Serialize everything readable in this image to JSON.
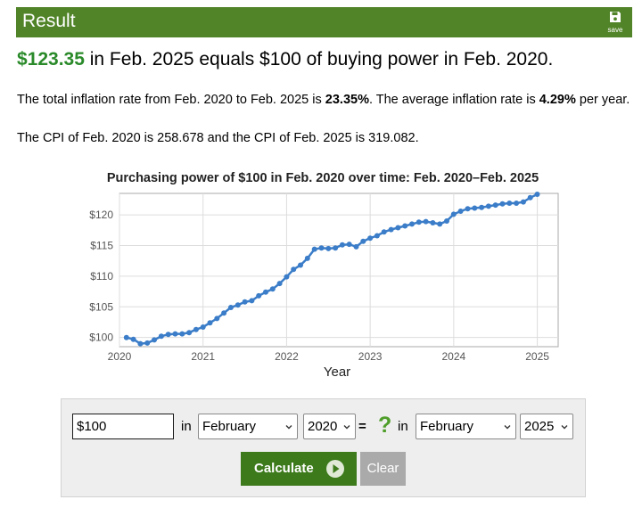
{
  "header": {
    "title": "Result",
    "save_label": "save",
    "bg_color": "#518428"
  },
  "headline": {
    "amount": "$123.35",
    "text": " in Feb. 2025 equals $100 of buying power in Feb. 2020."
  },
  "summary": {
    "p1_a": "The total inflation rate from Feb. 2020 to Feb. 2025 is ",
    "total_rate": "23.35%",
    "p1_b": ". The average inflation rate is ",
    "avg_rate": "4.29%",
    "p1_c": " per year.",
    "p2": "The CPI of Feb. 2020 is 258.678 and the CPI of Feb. 2025 is 319.082."
  },
  "chart_data": {
    "type": "line",
    "title": "Purchasing power of $100 in Feb. 2020 over time: Feb. 2020–Feb. 2025",
    "xlabel": "Year",
    "ylabel": "",
    "xlim": [
      2020,
      2025.25
    ],
    "ylim": [
      98.5,
      123.5
    ],
    "x_ticks": [
      "2020",
      "2021",
      "2022",
      "2023",
      "2024",
      "2025"
    ],
    "y_ticks": [
      "$100",
      "$105",
      "$110",
      "$115",
      "$120"
    ],
    "y_tick_values": [
      100,
      105,
      110,
      115,
      120
    ],
    "grid": true,
    "series_color": "#3b7dc8",
    "series": [
      {
        "x_start": 2020.0833,
        "x_step": 0.08333,
        "values": [
          100.0,
          99.7,
          99.0,
          99.1,
          99.6,
          100.2,
          100.5,
          100.6,
          100.6,
          100.8,
          101.3,
          101.7,
          102.4,
          103.1,
          104.0,
          104.9,
          105.3,
          105.8,
          106.0,
          106.8,
          107.4,
          107.9,
          108.8,
          109.9,
          111.1,
          111.8,
          112.9,
          114.4,
          114.6,
          114.5,
          114.6,
          115.1,
          115.2,
          114.8,
          115.7,
          116.2,
          116.6,
          117.2,
          117.6,
          117.9,
          118.2,
          118.5,
          118.8,
          118.9,
          118.7,
          118.5,
          119.0,
          120.1,
          120.6,
          121.0,
          121.1,
          121.2,
          121.4,
          121.6,
          121.8,
          121.9,
          121.9,
          122.1,
          122.8,
          123.35
        ]
      }
    ]
  },
  "form": {
    "amount_value": "$100",
    "in_label_1": "in",
    "from_month": "February",
    "from_year": "2020",
    "equals": "=",
    "question": "?",
    "in_label_2": "in",
    "to_month": "February",
    "to_year": "2025",
    "calculate_label": "Calculate",
    "clear_label": "Clear"
  }
}
